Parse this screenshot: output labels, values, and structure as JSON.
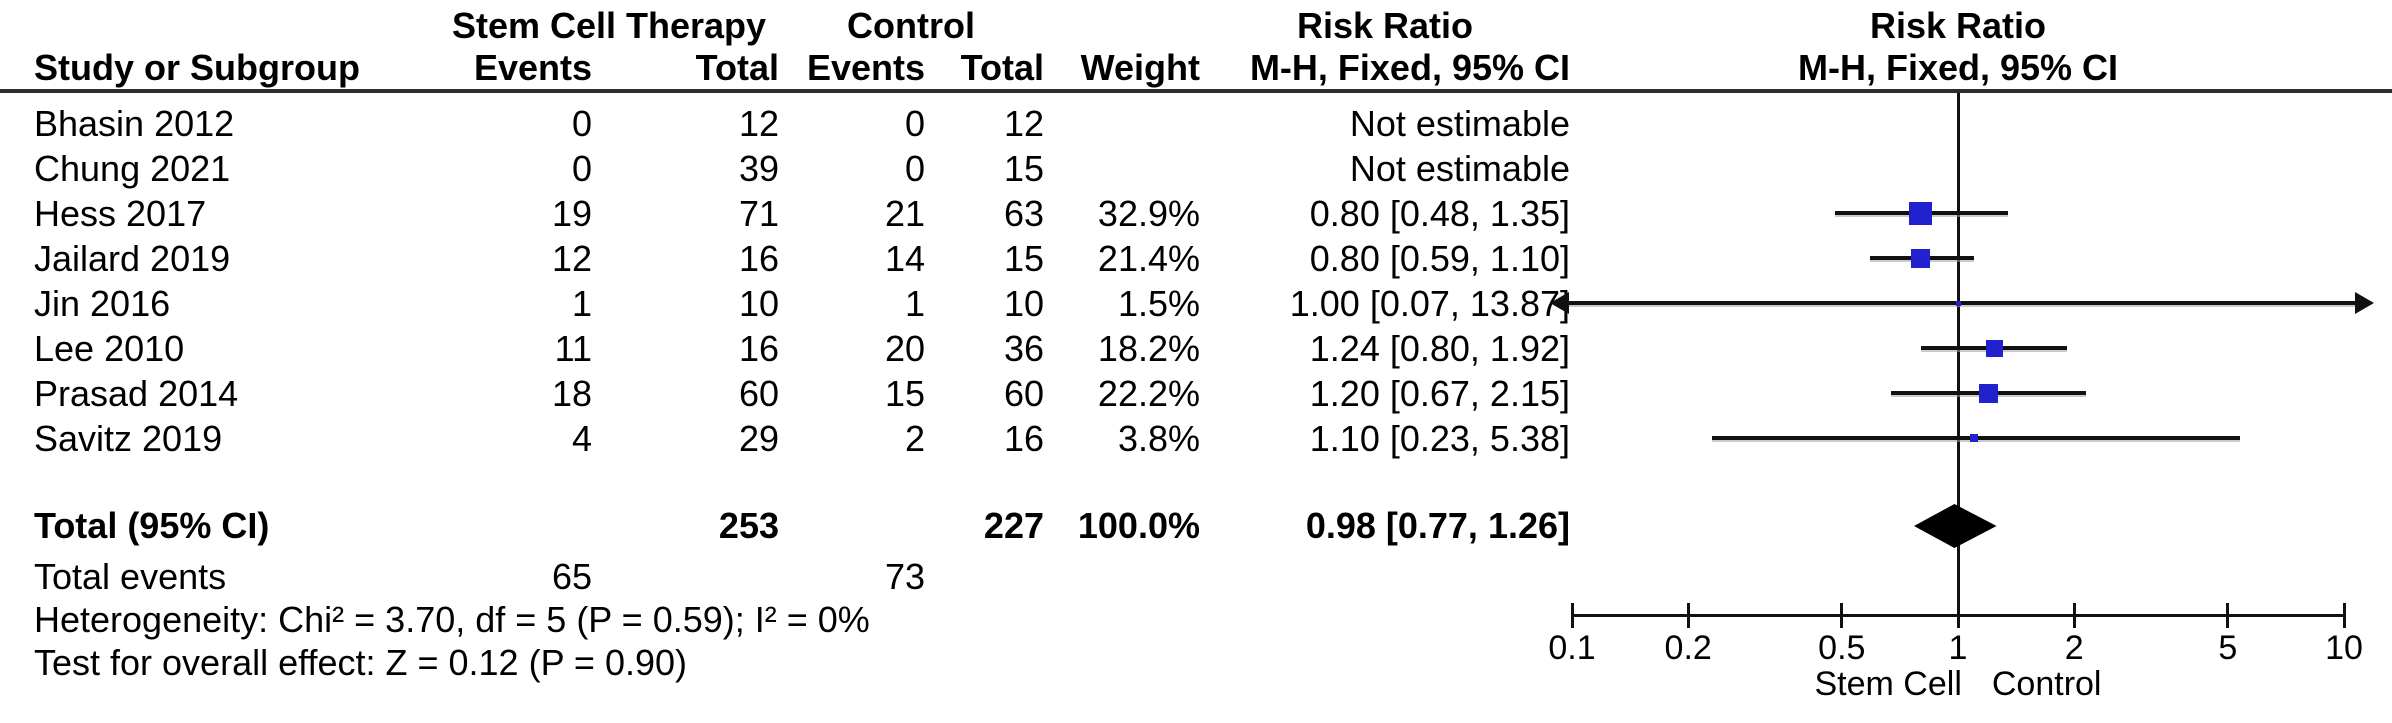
{
  "header": {
    "study_col": "Study or Subgroup",
    "group1": "Stem Cell Therapy",
    "group2": "Control",
    "events": "Events",
    "total": "Total",
    "weight": "Weight",
    "risk_ratio": "Risk Ratio",
    "method": "M-H, Fixed, 95% CI"
  },
  "colors": {
    "marker_blue": "#2121CE",
    "diamond_black": "#000000",
    "line_black": "#111111"
  },
  "chart_data": {
    "type": "forest",
    "effect_measure": "Risk Ratio",
    "method": "M-H, Fixed, 95% CI",
    "x_scale": "log",
    "axis_range": [
      0.1,
      10
    ],
    "axis_ticks": [
      "0.1",
      "0.2",
      "0.5",
      "1",
      "2",
      "5",
      "10"
    ],
    "favours_left": "Stem Cell",
    "favours_right": "Control",
    "studies": [
      {
        "name": "Bhasin 2012",
        "events1": "0",
        "total1": "12",
        "events2": "0",
        "total2": "12",
        "weight": "",
        "ci_text": "Not estimable",
        "estimable": false
      },
      {
        "name": "Chung 2021",
        "events1": "0",
        "total1": "39",
        "events2": "0",
        "total2": "15",
        "weight": "",
        "ci_text": "Not estimable",
        "estimable": false
      },
      {
        "name": "Hess 2017",
        "events1": "19",
        "total1": "71",
        "events2": "21",
        "total2": "63",
        "weight": "32.9%",
        "ci_text": "0.80 [0.48, 1.35]",
        "estimable": true,
        "rr": 0.8,
        "lo": 0.48,
        "hi": 1.35,
        "weight_pct": 32.9
      },
      {
        "name": "Jailard 2019",
        "events1": "12",
        "total1": "16",
        "events2": "14",
        "total2": "15",
        "weight": "21.4%",
        "ci_text": "0.80 [0.59, 1.10]",
        "estimable": true,
        "rr": 0.8,
        "lo": 0.59,
        "hi": 1.1,
        "weight_pct": 21.4
      },
      {
        "name": "Jin 2016",
        "events1": "1",
        "total1": "10",
        "events2": "1",
        "total2": "10",
        "weight": "1.5%",
        "ci_text": "1.00 [0.07, 13.87]",
        "estimable": true,
        "rr": 1.0,
        "lo": 0.07,
        "hi": 13.87,
        "weight_pct": 1.5
      },
      {
        "name": "Lee 2010",
        "events1": "11",
        "total1": "16",
        "events2": "20",
        "total2": "36",
        "weight": "18.2%",
        "ci_text": "1.24 [0.80, 1.92]",
        "estimable": true,
        "rr": 1.24,
        "lo": 0.8,
        "hi": 1.92,
        "weight_pct": 18.2
      },
      {
        "name": "Prasad 2014",
        "events1": "18",
        "total1": "60",
        "events2": "15",
        "total2": "60",
        "weight": "22.2%",
        "ci_text": "1.20 [0.67, 2.15]",
        "estimable": true,
        "rr": 1.2,
        "lo": 0.67,
        "hi": 2.15,
        "weight_pct": 22.2
      },
      {
        "name": "Savitz 2019",
        "events1": "4",
        "total1": "29",
        "events2": "2",
        "total2": "16",
        "weight": "3.8%",
        "ci_text": "1.10 [0.23, 5.38]",
        "estimable": true,
        "rr": 1.1,
        "lo": 0.23,
        "hi": 5.38,
        "weight_pct": 3.8
      }
    ],
    "total": {
      "label": "Total (95% CI)",
      "total1": "253",
      "total2": "227",
      "weight": "100.0%",
      "ci_text": "0.98 [0.77, 1.26]",
      "rr": 0.98,
      "lo": 0.77,
      "hi": 1.26
    },
    "total_events": {
      "label": "Total events",
      "events1": "65",
      "events2": "73"
    },
    "heterogeneity": "Heterogeneity: Chi² = 3.70, df = 5 (P = 0.59); I² = 0%",
    "overall_effect": "Test for overall effect: Z = 0.12 (P = 0.90)"
  }
}
